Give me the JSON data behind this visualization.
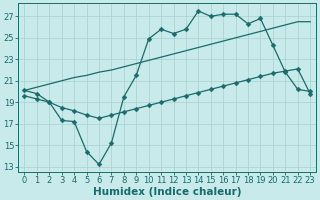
{
  "xlabel": "Humidex (Indice chaleur)",
  "bg_color": "#c8eaea",
  "line_color": "#1a6b6b",
  "grid_color": "#a8d0d0",
  "xlim": [
    -0.5,
    23.5
  ],
  "ylim": [
    12.5,
    28.2
  ],
  "xticks": [
    0,
    1,
    2,
    3,
    4,
    5,
    6,
    7,
    8,
    9,
    10,
    11,
    12,
    13,
    14,
    15,
    16,
    17,
    18,
    19,
    20,
    21,
    22,
    23
  ],
  "yticks": [
    13,
    15,
    17,
    19,
    21,
    23,
    25,
    27
  ],
  "line1_x": [
    0,
    1,
    2,
    3,
    4,
    5,
    6,
    7,
    8,
    9,
    10,
    11,
    12,
    13,
    14,
    15,
    16,
    17,
    18,
    19,
    20,
    21,
    22,
    23
  ],
  "line1_y": [
    20.1,
    19.8,
    19.0,
    17.3,
    17.2,
    14.4,
    13.2,
    15.2,
    19.5,
    21.5,
    24.9,
    25.8,
    25.4,
    25.8,
    27.5,
    27.0,
    27.2,
    27.2,
    26.3,
    26.8,
    24.3,
    21.8,
    20.2,
    20.0
  ],
  "line2_x": [
    0,
    1,
    2,
    3,
    4,
    5,
    6,
    7,
    8,
    9,
    10,
    11,
    12,
    13,
    14,
    15,
    16,
    17,
    18,
    19,
    20,
    21,
    22,
    23
  ],
  "line2_y": [
    19.6,
    19.3,
    19.0,
    18.5,
    18.2,
    17.8,
    17.5,
    17.8,
    18.1,
    18.4,
    18.7,
    19.0,
    19.3,
    19.6,
    19.9,
    20.2,
    20.5,
    20.8,
    21.1,
    21.4,
    21.7,
    21.9,
    22.1,
    19.8
  ],
  "line3_x": [
    0,
    1,
    2,
    3,
    4,
    5,
    6,
    7,
    8,
    9,
    10,
    11,
    12,
    13,
    14,
    15,
    16,
    17,
    18,
    19,
    20,
    21,
    22,
    23
  ],
  "line3_y": [
    20.1,
    20.4,
    20.7,
    21.0,
    21.3,
    21.5,
    21.8,
    22.0,
    22.3,
    22.6,
    22.9,
    23.2,
    23.5,
    23.8,
    24.1,
    24.4,
    24.7,
    25.0,
    25.3,
    25.6,
    25.9,
    26.2,
    26.5,
    26.5
  ],
  "marker_size": 2.5,
  "tick_fontsize": 6,
  "label_fontsize": 7.5
}
